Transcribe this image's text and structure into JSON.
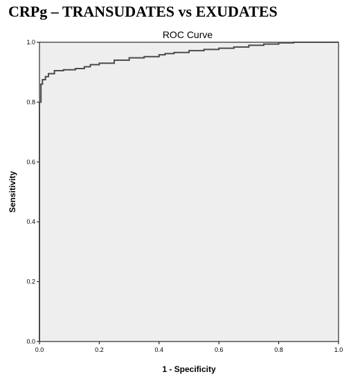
{
  "figure_title": "CRPg – TRANSUDATES vs EXUDATES",
  "chart_data": {
    "type": "line",
    "title": "ROC Curve",
    "xlabel": "1 - Specificity",
    "ylabel": "Sensitivity",
    "xlim": [
      0.0,
      1.0
    ],
    "ylim": [
      0.0,
      1.0
    ],
    "x_ticks": [
      "0.0",
      "0.2",
      "0.4",
      "0.6",
      "0.8",
      "1.0"
    ],
    "y_ticks": [
      "0.0",
      "0.2",
      "0.4",
      "0.6",
      "0.8",
      "1.0"
    ],
    "grid": false,
    "series": [
      {
        "x": [
          0,
          0,
          0.005,
          0.005,
          0.01,
          0.01,
          0.02,
          0.02,
          0.03,
          0.03,
          0.05,
          0.05,
          0.08,
          0.08,
          0.12,
          0.12,
          0.15,
          0.15,
          0.17,
          0.17,
          0.2,
          0.2,
          0.25,
          0.25,
          0.3,
          0.3,
          0.35,
          0.35,
          0.4,
          0.4,
          0.42,
          0.42,
          0.45,
          0.45,
          0.5,
          0.5,
          0.55,
          0.55,
          0.6,
          0.6,
          0.65,
          0.65,
          0.7,
          0.7,
          0.75,
          0.75,
          0.8,
          0.8,
          0.85,
          0.85,
          1.0
        ],
        "y": [
          0,
          0.8,
          0.8,
          0.86,
          0.86,
          0.875,
          0.875,
          0.885,
          0.885,
          0.895,
          0.895,
          0.905,
          0.905,
          0.908,
          0.908,
          0.912,
          0.912,
          0.918,
          0.918,
          0.925,
          0.925,
          0.93,
          0.93,
          0.94,
          0.94,
          0.948,
          0.948,
          0.952,
          0.952,
          0.958,
          0.958,
          0.962,
          0.962,
          0.966,
          0.966,
          0.972,
          0.972,
          0.976,
          0.976,
          0.98,
          0.98,
          0.984,
          0.984,
          0.99,
          0.99,
          0.994,
          0.994,
          0.998,
          0.998,
          1.0,
          1.0
        ]
      }
    ],
    "colors": {
      "plot_background": "#ececec",
      "stipple": "#ffffff",
      "curve": "#4a4a4a",
      "border": "#000000"
    }
  }
}
